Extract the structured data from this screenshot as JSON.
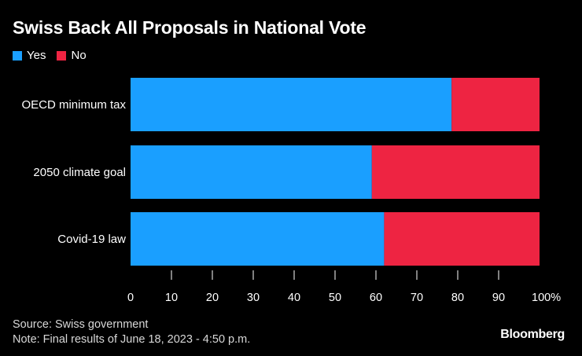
{
  "title": "Swiss Back All Proposals in National Vote",
  "source": "Source: Swiss government",
  "note": "Note: Final results of June 18, 2023 - 4:50 p.m.",
  "brand": "Bloomberg",
  "colors": {
    "yes": "#1a9fff",
    "no": "#ee2442",
    "background": "#000000",
    "text": "#ffffff",
    "axis": "#ffffff"
  },
  "chart_data": {
    "type": "bar",
    "orientation": "horizontal",
    "stacked": true,
    "title": "Swiss Back All Proposals in National Vote",
    "categories": [
      "OECD minimum tax",
      "2050 climate goal",
      "Covid-19 law"
    ],
    "series": [
      {
        "name": "Yes",
        "values": [
          78.5,
          59,
          62
        ]
      },
      {
        "name": "No",
        "values": [
          21.5,
          41,
          38
        ]
      }
    ],
    "xlim": [
      0,
      100
    ],
    "xticks": [
      0,
      10,
      20,
      30,
      40,
      50,
      60,
      70,
      80,
      90,
      100
    ],
    "xtick_labels": [
      "0",
      "10",
      "20",
      "30",
      "40",
      "50",
      "60",
      "70",
      "80",
      "90",
      "100%"
    ],
    "xlabel": "",
    "ylabel": "",
    "grid": false,
    "legend_position": "top-left"
  }
}
